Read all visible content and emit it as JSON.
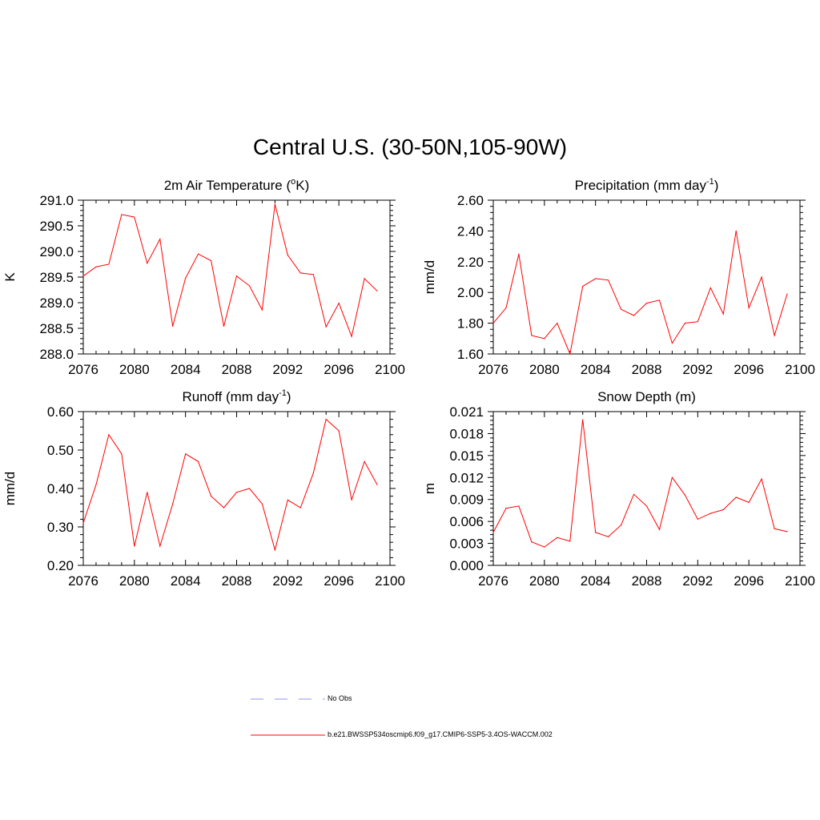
{
  "title": "Central U.S. (30-50N,105-90W)",
  "line_color": "#ff0000",
  "obs_line_color": "#aaaaee",
  "legend": {
    "obs_label": "No Obs",
    "model_label": "b.e21.BWSSP534oscmip6.f09_g17.CMIP6-SSP5-3.4OS-WACCM.002"
  },
  "panels": [
    {
      "title": "2m Air Temperature (",
      "title_sup": "o",
      "title_tail": "K)",
      "ylabel": "K"
    },
    {
      "title": "Precipitation (mm day",
      "title_sup": "-1",
      "title_tail": ")",
      "ylabel": "mm/d"
    },
    {
      "title": "Runoff (mm day",
      "title_sup": "-1",
      "title_tail": ")",
      "ylabel": "mm/d"
    },
    {
      "title": "Snow Depth (m)",
      "title_sup": "",
      "title_tail": "",
      "ylabel": "m"
    }
  ],
  "chart_data": [
    {
      "type": "line",
      "title": "2m Air Temperature (oK)",
      "ylabel": "K",
      "xlim": [
        2076,
        2100
      ],
      "ylim": [
        288.0,
        291.0
      ],
      "xticks": [
        2076,
        2080,
        2084,
        2088,
        2092,
        2096,
        2100
      ],
      "yticks": [
        288.0,
        288.5,
        289.0,
        289.5,
        290.0,
        290.5,
        291.0
      ],
      "ytick_labels": [
        "288.0",
        "288.5",
        "289.0",
        "289.5",
        "290.0",
        "290.5",
        "291.0"
      ],
      "x": [
        2076,
        2077,
        2078,
        2079,
        2080,
        2081,
        2082,
        2083,
        2084,
        2085,
        2086,
        2087,
        2088,
        2089,
        2090,
        2091,
        2092,
        2093,
        2094,
        2095,
        2096,
        2097,
        2098,
        2099
      ],
      "values": [
        289.52,
        289.7,
        289.75,
        290.72,
        290.67,
        289.77,
        290.24,
        288.54,
        289.48,
        289.95,
        289.82,
        288.54,
        289.52,
        289.33,
        288.86,
        290.92,
        289.93,
        289.58,
        289.55,
        288.53,
        288.99,
        288.34,
        289.47,
        289.23
      ]
    },
    {
      "type": "line",
      "title": "Precipitation (mm day-1)",
      "ylabel": "mm/d",
      "xlim": [
        2076,
        2100
      ],
      "ylim": [
        1.6,
        2.6
      ],
      "xticks": [
        2076,
        2080,
        2084,
        2088,
        2092,
        2096,
        2100
      ],
      "yticks": [
        1.6,
        1.8,
        2.0,
        2.2,
        2.4,
        2.6
      ],
      "ytick_labels": [
        "1.60",
        "1.80",
        "2.00",
        "2.20",
        "2.40",
        "2.60"
      ],
      "x": [
        2076,
        2077,
        2078,
        2079,
        2080,
        2081,
        2082,
        2083,
        2084,
        2085,
        2086,
        2087,
        2088,
        2089,
        2090,
        2091,
        2092,
        2093,
        2094,
        2095,
        2096,
        2097,
        2098,
        2099
      ],
      "values": [
        1.8,
        1.9,
        2.25,
        1.72,
        1.7,
        1.8,
        1.6,
        2.04,
        2.09,
        2.08,
        1.89,
        1.85,
        1.93,
        1.95,
        1.67,
        1.8,
        1.81,
        2.03,
        1.86,
        2.4,
        1.9,
        2.1,
        1.72,
        1.99
      ]
    },
    {
      "type": "line",
      "title": "Runoff (mm day-1)",
      "ylabel": "mm/d",
      "xlim": [
        2076,
        2100
      ],
      "ylim": [
        0.2,
        0.6
      ],
      "xticks": [
        2076,
        2080,
        2084,
        2088,
        2092,
        2096,
        2100
      ],
      "yticks": [
        0.2,
        0.3,
        0.4,
        0.5,
        0.6
      ],
      "ytick_labels": [
        "0.20",
        "0.30",
        "0.40",
        "0.50",
        "0.60"
      ],
      "x": [
        2076,
        2077,
        2078,
        2079,
        2080,
        2081,
        2082,
        2083,
        2084,
        2085,
        2086,
        2087,
        2088,
        2089,
        2090,
        2091,
        2092,
        2093,
        2094,
        2095,
        2096,
        2097,
        2098,
        2099
      ],
      "values": [
        0.31,
        0.41,
        0.54,
        0.49,
        0.25,
        0.39,
        0.25,
        0.36,
        0.49,
        0.47,
        0.38,
        0.35,
        0.39,
        0.4,
        0.36,
        0.24,
        0.37,
        0.35,
        0.44,
        0.58,
        0.55,
        0.37,
        0.47,
        0.41
      ]
    },
    {
      "type": "line",
      "title": "Snow Depth (m)",
      "ylabel": "m",
      "xlim": [
        2076,
        2100
      ],
      "ylim": [
        0.0,
        0.021
      ],
      "xticks": [
        2076,
        2080,
        2084,
        2088,
        2092,
        2096,
        2100
      ],
      "yticks": [
        0.0,
        0.003,
        0.006,
        0.009,
        0.012,
        0.015,
        0.018,
        0.021
      ],
      "ytick_labels": [
        "0.000",
        "0.003",
        "0.006",
        "0.009",
        "0.012",
        "0.015",
        "0.018",
        "0.021"
      ],
      "x": [
        2076,
        2077,
        2078,
        2079,
        2080,
        2081,
        2082,
        2083,
        2084,
        2085,
        2086,
        2087,
        2088,
        2089,
        2090,
        2091,
        2092,
        2093,
        2094,
        2095,
        2096,
        2097,
        2098,
        2099
      ],
      "values": [
        0.0045,
        0.0078,
        0.0081,
        0.0032,
        0.0025,
        0.0038,
        0.0033,
        0.0199,
        0.0045,
        0.0039,
        0.0055,
        0.0097,
        0.0081,
        0.0049,
        0.012,
        0.0096,
        0.0063,
        0.0071,
        0.0076,
        0.0093,
        0.0086,
        0.0118,
        0.005,
        0.0046
      ]
    }
  ]
}
